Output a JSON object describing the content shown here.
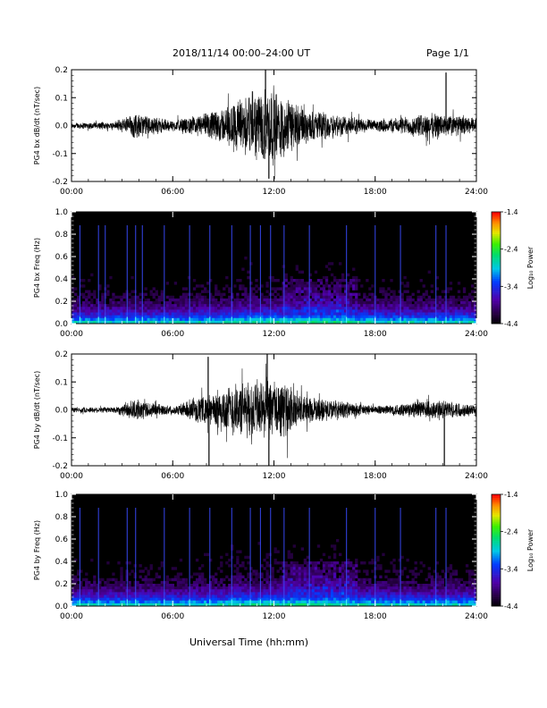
{
  "header": {
    "title": "2018/11/14  00:00–24:00 UT",
    "page": "Page 1/1"
  },
  "xlabel": "Universal Time (hh:mm)",
  "colorbar": {
    "label": "Log₁₀ Power",
    "ticks": [
      "-1.4",
      "-2.4",
      "-3.4",
      "-4.4"
    ]
  },
  "chart_data": [
    {
      "type": "line",
      "ylabel": "PG4 bx dB/dt (nT/sec)",
      "xticks": [
        "00:00",
        "06:00",
        "12:00",
        "18:00",
        "24:00"
      ],
      "yticks": [
        "0.2",
        "0.1",
        "0.0",
        "-0.1",
        "-0.2"
      ],
      "xlim": [
        0,
        24
      ],
      "ylim": [
        -0.2,
        0.2
      ],
      "x_unit": "hours UT",
      "envelope": [
        {
          "x": 0,
          "amp": 0.012
        },
        {
          "x": 2.5,
          "amp": 0.015
        },
        {
          "x": 3.7,
          "amp": 0.05
        },
        {
          "x": 6,
          "amp": 0.02
        },
        {
          "x": 7.5,
          "amp": 0.04
        },
        {
          "x": 9,
          "amp": 0.07
        },
        {
          "x": 10.2,
          "amp": 0.12
        },
        {
          "x": 11.2,
          "amp": 0.14
        },
        {
          "x": 11.8,
          "amp": 0.16
        },
        {
          "x": 12.5,
          "amp": 0.13
        },
        {
          "x": 14,
          "amp": 0.06
        },
        {
          "x": 15.5,
          "amp": 0.05
        },
        {
          "x": 18,
          "amp": 0.02
        },
        {
          "x": 21.5,
          "amp": 0.05
        },
        {
          "x": 24,
          "amp": 0.03
        }
      ],
      "spikes": [
        {
          "x": 11.5,
          "y": 0.2
        },
        {
          "x": 11.7,
          "y": -0.19
        },
        {
          "x": 22.2,
          "y": 0.19
        }
      ]
    },
    {
      "type": "heatmap",
      "ylabel": "PG4 bx Freq (Hz)",
      "xticks": [
        "00:00",
        "06:00",
        "12:00",
        "18:00",
        "24:00"
      ],
      "yticks": [
        "1.0",
        "0.8",
        "0.6",
        "0.4",
        "0.2",
        "0.0"
      ],
      "xlim": [
        0,
        24
      ],
      "ylim": [
        0,
        1.0
      ],
      "colorscale_range": [
        -4.4,
        -1.4
      ],
      "vertical_lines_hours": [
        0.5,
        1.6,
        2.0,
        3.3,
        3.8,
        4.2,
        5.5,
        7.0,
        8.2,
        9.5,
        10.6,
        11.2,
        11.8,
        12.6,
        14.1,
        16.3,
        18.0,
        19.5,
        21.6,
        22.2
      ]
    },
    {
      "type": "line",
      "ylabel": "PG4 by dB/dt (nT/sec)",
      "xticks": [
        "00:00",
        "06:00",
        "12:00",
        "18:00",
        "24:00"
      ],
      "yticks": [
        "0.2",
        "0.1",
        "0.0",
        "-0.1",
        "-0.2"
      ],
      "xlim": [
        0,
        24
      ],
      "ylim": [
        -0.2,
        0.2
      ],
      "x_unit": "hours UT",
      "envelope": [
        {
          "x": 0,
          "amp": 0.01
        },
        {
          "x": 2.5,
          "amp": 0.012
        },
        {
          "x": 3.7,
          "amp": 0.04
        },
        {
          "x": 6,
          "amp": 0.015
        },
        {
          "x": 8.2,
          "amp": 0.06
        },
        {
          "x": 9.5,
          "amp": 0.1
        },
        {
          "x": 10.5,
          "amp": 0.11
        },
        {
          "x": 11.5,
          "amp": 0.12
        },
        {
          "x": 12.5,
          "amp": 0.11
        },
        {
          "x": 14,
          "amp": 0.05
        },
        {
          "x": 15.5,
          "amp": 0.04
        },
        {
          "x": 18,
          "amp": 0.015
        },
        {
          "x": 21.5,
          "amp": 0.04
        },
        {
          "x": 24,
          "amp": 0.02
        }
      ],
      "spikes": [
        {
          "x": 8.1,
          "y": 0.19
        },
        {
          "x": 8.15,
          "y": -0.2
        },
        {
          "x": 11.7,
          "y": -0.2
        },
        {
          "x": 11.6,
          "y": 0.2
        },
        {
          "x": 22.1,
          "y": -0.2
        }
      ]
    },
    {
      "type": "heatmap",
      "ylabel": "PG4 by Freq (Hz)",
      "xticks": [
        "00:00",
        "06:00",
        "12:00",
        "18:00",
        "24:00"
      ],
      "yticks": [
        "1.0",
        "0.8",
        "0.6",
        "0.4",
        "0.2",
        "0.0"
      ],
      "xlim": [
        0,
        24
      ],
      "ylim": [
        0,
        1.0
      ],
      "colorscale_range": [
        -4.4,
        -1.4
      ],
      "vertical_lines_hours": [
        0.5,
        1.6,
        3.3,
        3.8,
        5.5,
        7.0,
        8.2,
        9.5,
        10.6,
        11.2,
        11.8,
        12.6,
        14.1,
        16.3,
        18.0,
        19.5,
        21.6,
        22.2
      ]
    }
  ]
}
